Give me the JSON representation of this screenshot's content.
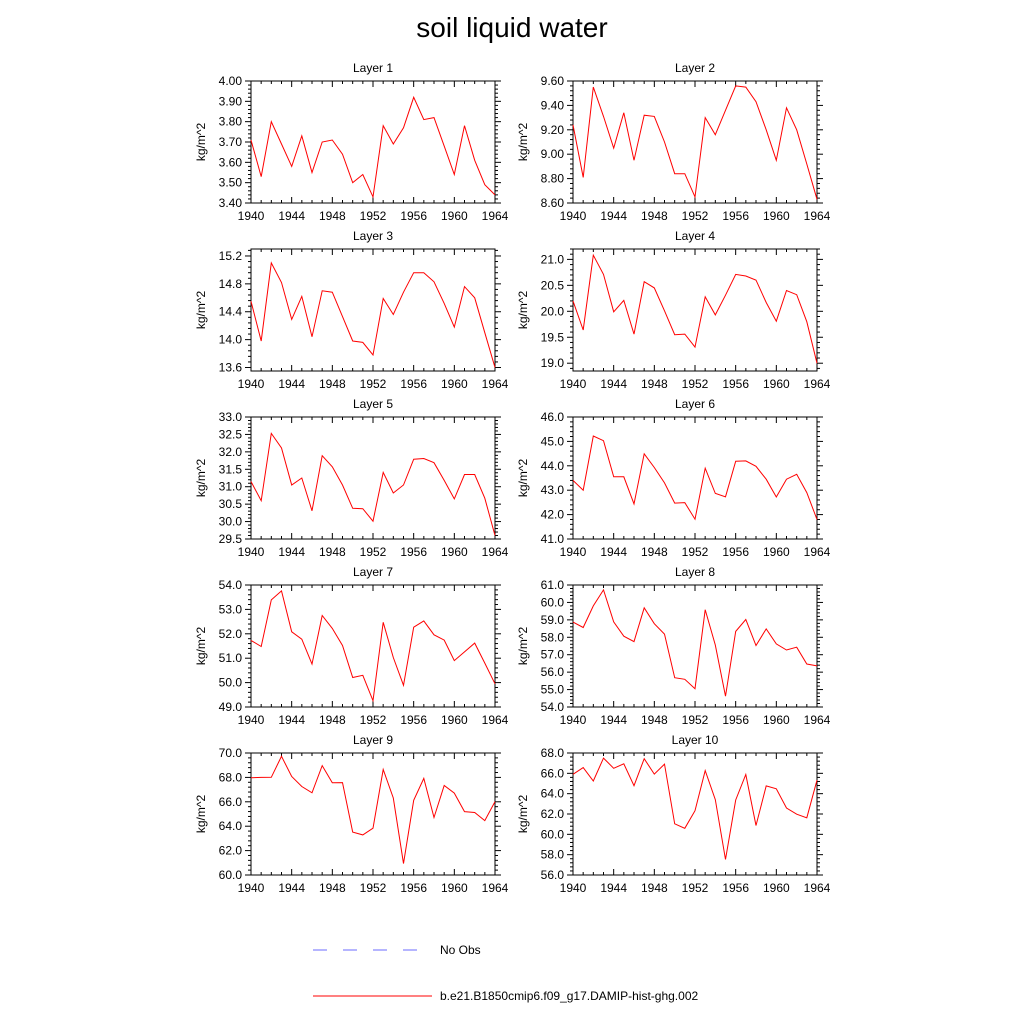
{
  "title": "soil liquid water",
  "legend": {
    "position": "bottom",
    "entries": [
      {
        "label": "No Obs",
        "color": "#6b6bff",
        "style": "dashed"
      },
      {
        "label": "b.e21.B1850cmip6.f09_g17.DAMIP-hist-ghg.002",
        "color": "#ff0000",
        "style": "solid"
      }
    ]
  },
  "chart_data": [
    {
      "type": "line",
      "title": "Layer 1",
      "ylabel": "kg/m^2",
      "xlim": [
        1940,
        1964
      ],
      "ylim": [
        3.4,
        4.0
      ],
      "xticks": [
        1940,
        1944,
        1948,
        1952,
        1956,
        1960,
        1964
      ],
      "yticks": [
        "3.40",
        "3.50",
        "3.60",
        "3.70",
        "3.80",
        "3.90",
        "4.00"
      ],
      "x": [
        1940,
        1941,
        1942,
        1943,
        1944,
        1945,
        1946,
        1947,
        1948,
        1949,
        1950,
        1951,
        1952,
        1953,
        1954,
        1955,
        1956,
        1957,
        1958,
        1959,
        1960,
        1961,
        1962,
        1963,
        1964
      ],
      "series": [
        {
          "color": "#ff0000",
          "values": [
            3.71,
            3.53,
            3.8,
            3.69,
            3.58,
            3.73,
            3.55,
            3.7,
            3.71,
            3.64,
            3.5,
            3.54,
            3.43,
            3.78,
            3.69,
            3.77,
            3.92,
            3.81,
            3.82,
            3.68,
            3.54,
            3.78,
            3.61,
            3.49,
            3.44
          ]
        }
      ]
    },
    {
      "type": "line",
      "title": "Layer 2",
      "ylabel": "kg/m^2",
      "xlim": [
        1940,
        1964
      ],
      "ylim": [
        8.6,
        9.6
      ],
      "xticks": [
        1940,
        1944,
        1948,
        1952,
        1956,
        1960,
        1964
      ],
      "yticks": [
        "8.60",
        "8.80",
        "9.00",
        "9.20",
        "9.40",
        "9.60"
      ],
      "x": [
        1940,
        1941,
        1942,
        1943,
        1944,
        1945,
        1946,
        1947,
        1948,
        1949,
        1950,
        1951,
        1952,
        1953,
        1954,
        1955,
        1956,
        1957,
        1958,
        1959,
        1960,
        1961,
        1962,
        1963,
        1964
      ],
      "series": [
        {
          "color": "#ff0000",
          "values": [
            9.24,
            8.81,
            9.55,
            9.31,
            9.05,
            9.34,
            8.95,
            9.32,
            9.31,
            9.1,
            8.84,
            8.84,
            8.65,
            9.3,
            9.16,
            9.36,
            9.56,
            9.55,
            9.43,
            9.2,
            8.95,
            9.38,
            9.2,
            8.92,
            8.63
          ]
        }
      ]
    },
    {
      "type": "line",
      "title": "Layer 3",
      "ylabel": "kg/m^2",
      "xlim": [
        1940,
        1964
      ],
      "ylim": [
        13.55,
        15.3
      ],
      "xticks": [
        1940,
        1944,
        1948,
        1952,
        1956,
        1960,
        1964
      ],
      "yticks": [
        "13.6",
        "14.0",
        "14.4",
        "14.8",
        "15.2"
      ],
      "x": [
        1940,
        1941,
        1942,
        1943,
        1944,
        1945,
        1946,
        1947,
        1948,
        1949,
        1950,
        1951,
        1952,
        1953,
        1954,
        1955,
        1956,
        1957,
        1958,
        1959,
        1960,
        1961,
        1962,
        1963,
        1964
      ],
      "series": [
        {
          "color": "#ff0000",
          "values": [
            14.55,
            13.98,
            15.1,
            14.82,
            14.29,
            14.62,
            14.04,
            14.7,
            14.68,
            14.33,
            13.98,
            13.96,
            13.78,
            14.59,
            14.36,
            14.68,
            14.96,
            14.96,
            14.83,
            14.52,
            14.18,
            14.76,
            14.6,
            14.1,
            13.6
          ]
        }
      ]
    },
    {
      "type": "line",
      "title": "Layer 4",
      "ylabel": "kg/m^2",
      "xlim": [
        1940,
        1964
      ],
      "ylim": [
        18.85,
        21.2
      ],
      "xticks": [
        1940,
        1944,
        1948,
        1952,
        1956,
        1960,
        1964
      ],
      "yticks": [
        "19.0",
        "19.5",
        "20.0",
        "20.5",
        "21.0"
      ],
      "x": [
        1940,
        1941,
        1942,
        1943,
        1944,
        1945,
        1946,
        1947,
        1948,
        1949,
        1950,
        1951,
        1952,
        1953,
        1954,
        1955,
        1956,
        1957,
        1958,
        1959,
        1960,
        1961,
        1962,
        1963,
        1964
      ],
      "series": [
        {
          "color": "#ff0000",
          "values": [
            20.2,
            19.64,
            21.08,
            20.71,
            19.99,
            20.21,
            19.56,
            20.57,
            20.45,
            20.01,
            19.55,
            19.56,
            19.31,
            20.28,
            19.93,
            20.31,
            20.71,
            20.68,
            20.6,
            20.17,
            19.81,
            20.4,
            20.32,
            19.8,
            19.0
          ]
        }
      ]
    },
    {
      "type": "line",
      "title": "Layer 5",
      "ylabel": "kg/m^2",
      "xlim": [
        1940,
        1964
      ],
      "ylim": [
        29.5,
        33.0
      ],
      "xticks": [
        1940,
        1944,
        1948,
        1952,
        1956,
        1960,
        1964
      ],
      "yticks": [
        "29.5",
        "30.0",
        "30.5",
        "31.0",
        "31.5",
        "32.0",
        "32.5",
        "33.0"
      ],
      "x": [
        1940,
        1941,
        1942,
        1943,
        1944,
        1945,
        1946,
        1947,
        1948,
        1949,
        1950,
        1951,
        1952,
        1953,
        1954,
        1955,
        1956,
        1957,
        1958,
        1959,
        1960,
        1961,
        1962,
        1963,
        1964
      ],
      "series": [
        {
          "color": "#ff0000",
          "values": [
            31.15,
            30.6,
            32.53,
            32.11,
            31.05,
            31.25,
            30.31,
            31.89,
            31.57,
            31.05,
            30.38,
            30.37,
            30.01,
            31.41,
            30.82,
            31.05,
            31.79,
            31.81,
            31.69,
            31.18,
            30.65,
            31.35,
            31.35,
            30.67,
            29.6
          ]
        }
      ]
    },
    {
      "type": "line",
      "title": "Layer 6",
      "ylabel": "kg/m^2",
      "xlim": [
        1940,
        1964
      ],
      "ylim": [
        41.0,
        46.0
      ],
      "xticks": [
        1940,
        1944,
        1948,
        1952,
        1956,
        1960,
        1964
      ],
      "yticks": [
        "41.0",
        "42.0",
        "43.0",
        "44.0",
        "45.0",
        "46.0"
      ],
      "x": [
        1940,
        1941,
        1942,
        1943,
        1944,
        1945,
        1946,
        1947,
        1948,
        1949,
        1950,
        1951,
        1952,
        1953,
        1954,
        1955,
        1956,
        1957,
        1958,
        1959,
        1960,
        1961,
        1962,
        1963,
        1964
      ],
      "series": [
        {
          "color": "#ff0000",
          "values": [
            43.4,
            43.0,
            45.22,
            45.03,
            43.55,
            43.55,
            42.44,
            44.49,
            43.93,
            43.3,
            42.47,
            42.49,
            41.81,
            43.9,
            42.87,
            42.73,
            44.19,
            44.2,
            43.98,
            43.45,
            42.72,
            43.45,
            43.65,
            42.9,
            41.8
          ]
        }
      ]
    },
    {
      "type": "line",
      "title": "Layer 7",
      "ylabel": "kg/m^2",
      "xlim": [
        1940,
        1964
      ],
      "ylim": [
        49.0,
        54.0
      ],
      "xticks": [
        1940,
        1944,
        1948,
        1952,
        1956,
        1960,
        1964
      ],
      "yticks": [
        "49.0",
        "50.0",
        "51.0",
        "52.0",
        "53.0",
        "54.0"
      ],
      "x": [
        1940,
        1941,
        1942,
        1943,
        1944,
        1945,
        1946,
        1947,
        1948,
        1949,
        1950,
        1951,
        1952,
        1953,
        1954,
        1955,
        1956,
        1957,
        1958,
        1959,
        1960,
        1961,
        1962,
        1963,
        1964
      ],
      "series": [
        {
          "color": "#ff0000",
          "values": [
            51.73,
            51.48,
            53.39,
            53.76,
            52.08,
            51.78,
            50.76,
            52.75,
            52.22,
            51.52,
            50.21,
            50.3,
            49.26,
            52.47,
            51.03,
            49.89,
            52.27,
            52.53,
            51.96,
            51.74,
            50.9,
            51.26,
            51.62,
            50.8,
            49.95
          ]
        }
      ]
    },
    {
      "type": "line",
      "title": "Layer 8",
      "ylabel": "kg/m^2",
      "xlim": [
        1940,
        1964
      ],
      "ylim": [
        54.0,
        61.0
      ],
      "xticks": [
        1940,
        1944,
        1948,
        1952,
        1956,
        1960,
        1964
      ],
      "yticks": [
        "54.0",
        "55.0",
        "56.0",
        "57.0",
        "58.0",
        "59.0",
        "60.0",
        "61.0"
      ],
      "x": [
        1940,
        1941,
        1942,
        1943,
        1944,
        1945,
        1946,
        1947,
        1948,
        1949,
        1950,
        1951,
        1952,
        1953,
        1954,
        1955,
        1956,
        1957,
        1958,
        1959,
        1960,
        1961,
        1962,
        1963,
        1964
      ],
      "series": [
        {
          "color": "#ff0000",
          "values": [
            58.87,
            58.56,
            59.8,
            60.72,
            58.88,
            58.06,
            57.75,
            59.69,
            58.78,
            58.18,
            55.68,
            55.59,
            55.05,
            59.58,
            57.56,
            54.62,
            58.34,
            59.02,
            57.53,
            58.48,
            57.62,
            57.27,
            57.43,
            56.47,
            56.36
          ]
        }
      ]
    },
    {
      "type": "line",
      "title": "Layer 9",
      "ylabel": "kg/m^2",
      "xlim": [
        1940,
        1964
      ],
      "ylim": [
        60.0,
        70.0
      ],
      "xticks": [
        1940,
        1944,
        1948,
        1952,
        1956,
        1960,
        1964
      ],
      "yticks": [
        "60.0",
        "62.0",
        "64.0",
        "66.0",
        "68.0",
        "70.0"
      ],
      "x": [
        1940,
        1941,
        1942,
        1943,
        1944,
        1945,
        1946,
        1947,
        1948,
        1949,
        1950,
        1951,
        1952,
        1953,
        1954,
        1955,
        1956,
        1957,
        1958,
        1959,
        1960,
        1961,
        1962,
        1963,
        1964
      ],
      "series": [
        {
          "color": "#ff0000",
          "values": [
            67.97,
            68.0,
            68.01,
            69.73,
            68.07,
            67.25,
            66.74,
            68.97,
            67.56,
            67.57,
            63.52,
            63.29,
            63.84,
            68.65,
            66.31,
            60.94,
            66.12,
            67.92,
            64.71,
            67.34,
            66.71,
            65.2,
            65.12,
            64.46,
            66.02
          ]
        }
      ]
    },
    {
      "type": "line",
      "title": "Layer 10",
      "ylabel": "kg/m^2",
      "xlim": [
        1940,
        1964
      ],
      "ylim": [
        56.0,
        68.0
      ],
      "xticks": [
        1940,
        1944,
        1948,
        1952,
        1956,
        1960,
        1964
      ],
      "yticks": [
        "56.0",
        "58.0",
        "60.0",
        "62.0",
        "64.0",
        "66.0",
        "68.0"
      ],
      "x": [
        1940,
        1941,
        1942,
        1943,
        1944,
        1945,
        1946,
        1947,
        1948,
        1949,
        1950,
        1951,
        1952,
        1953,
        1954,
        1955,
        1956,
        1957,
        1958,
        1959,
        1960,
        1961,
        1962,
        1963,
        1964
      ],
      "series": [
        {
          "color": "#ff0000",
          "values": [
            65.9,
            66.56,
            65.25,
            67.5,
            66.5,
            66.94,
            64.78,
            67.44,
            65.92,
            66.91,
            61.04,
            60.59,
            62.32,
            66.27,
            63.42,
            57.53,
            63.38,
            65.89,
            60.87,
            64.76,
            64.48,
            62.59,
            61.98,
            61.63,
            65.33
          ]
        }
      ]
    }
  ]
}
